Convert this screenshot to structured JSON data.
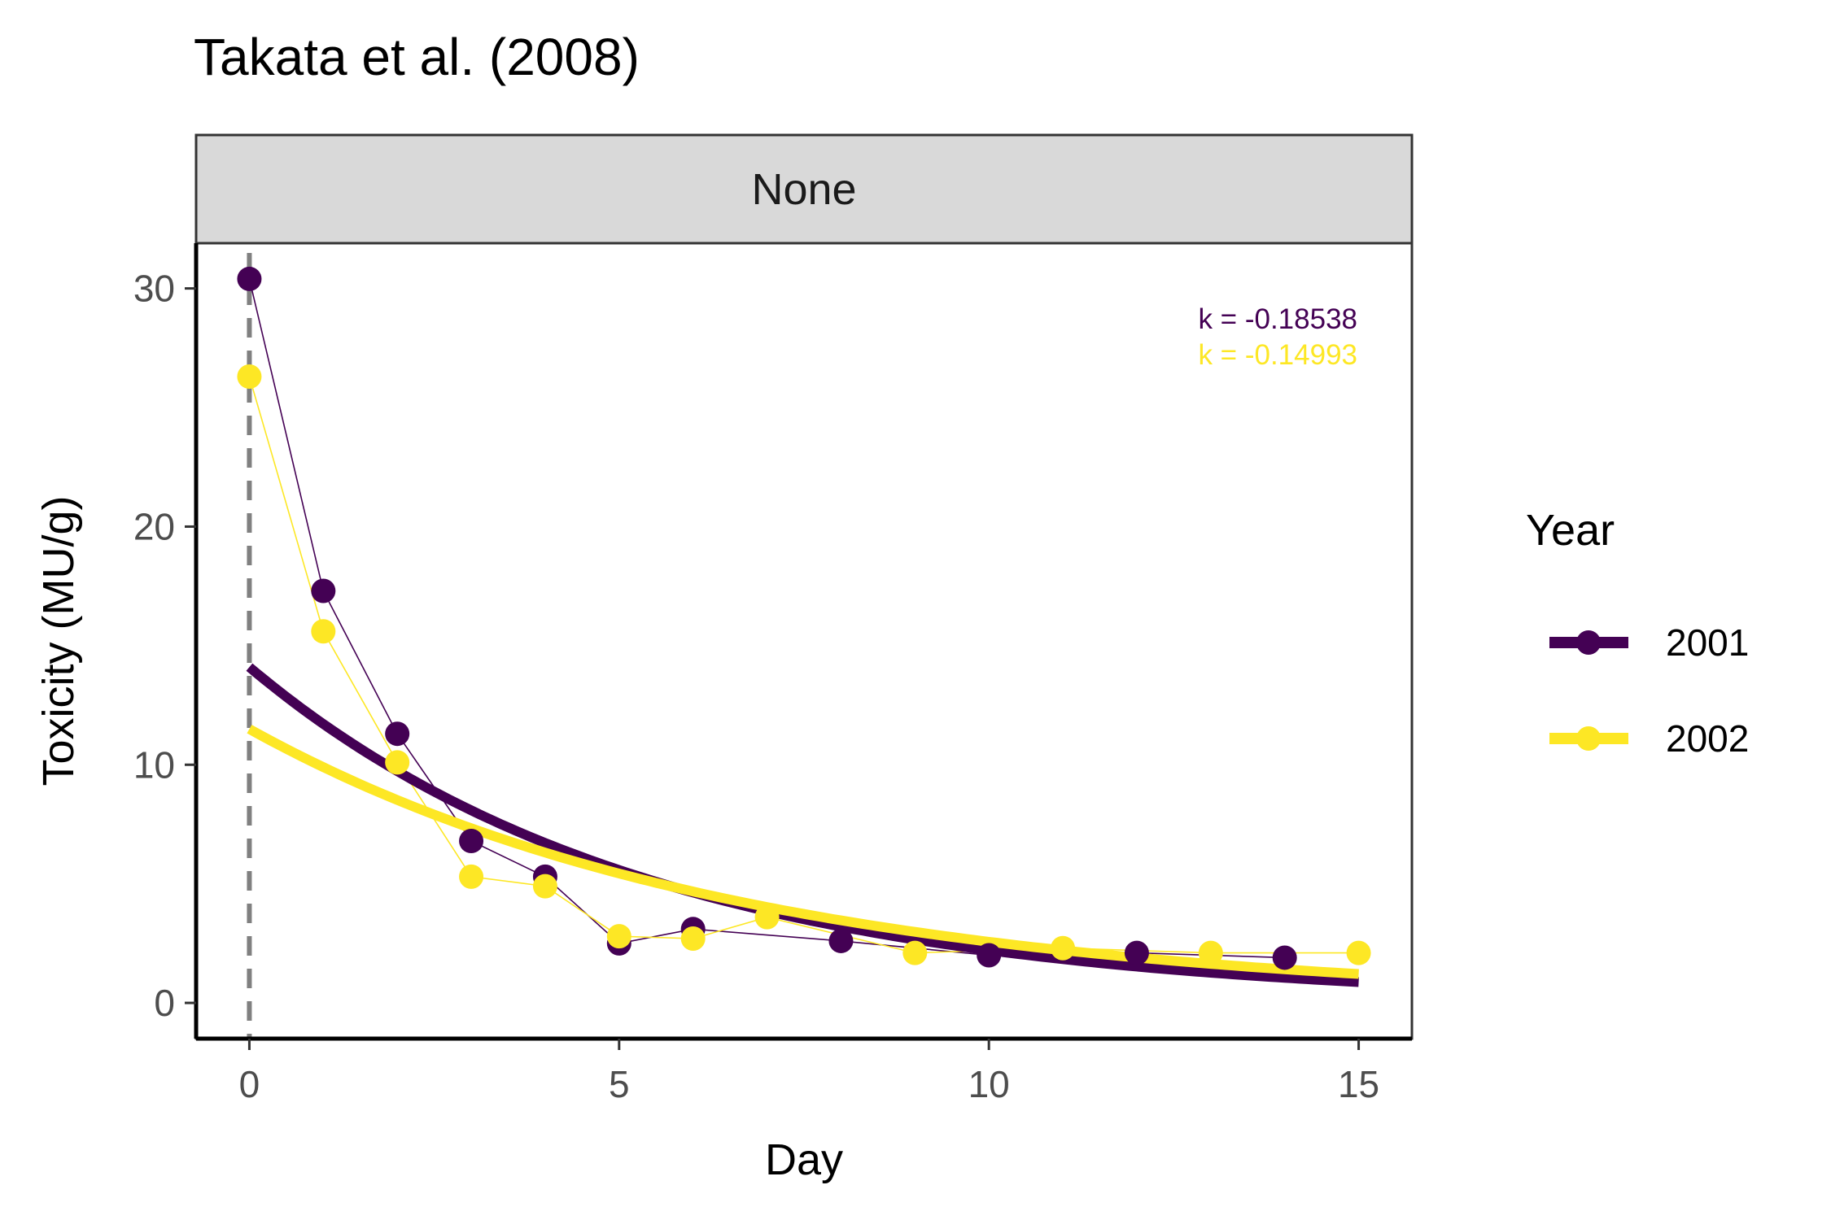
{
  "chart_data": {
    "type": "line",
    "title": "Takata et al. (2008)",
    "facet_label": "None",
    "xlabel": "Day",
    "ylabel": "Toxicity (MU/g)",
    "xlim": [
      -0.72,
      15.72
    ],
    "ylim": [
      -1.5,
      31.9
    ],
    "x_ticks": [
      0,
      5,
      10,
      15
    ],
    "y_ticks": [
      0,
      10,
      20,
      30
    ],
    "vline_x": 0,
    "grid": false,
    "legend": {
      "title": "Year",
      "position": "right"
    },
    "series": [
      {
        "name": "2001",
        "color": "#440154",
        "points": [
          [
            0,
            30.4
          ],
          [
            1,
            17.3
          ],
          [
            2,
            11.3
          ],
          [
            3,
            6.8
          ],
          [
            4,
            5.3
          ],
          [
            5,
            2.5
          ],
          [
            6,
            3.1
          ],
          [
            8,
            2.6
          ],
          [
            10,
            2.0
          ],
          [
            12,
            2.1
          ],
          [
            14,
            1.9
          ]
        ],
        "fit": {
          "a": 14.1,
          "k": -0.18538
        },
        "annotation": "k = -0.18538"
      },
      {
        "name": "2002",
        "color": "#FDE725",
        "points": [
          [
            0,
            26.3
          ],
          [
            1,
            15.6
          ],
          [
            2,
            10.1
          ],
          [
            3,
            5.3
          ],
          [
            4,
            4.9
          ],
          [
            5,
            2.8
          ],
          [
            6,
            2.7
          ],
          [
            7,
            3.6
          ],
          [
            9,
            2.1
          ],
          [
            11,
            2.3
          ],
          [
            13,
            2.1
          ],
          [
            15,
            2.1
          ]
        ],
        "fit": {
          "a": 11.5,
          "k": -0.14993
        },
        "annotation": "k = -0.14993"
      }
    ]
  }
}
